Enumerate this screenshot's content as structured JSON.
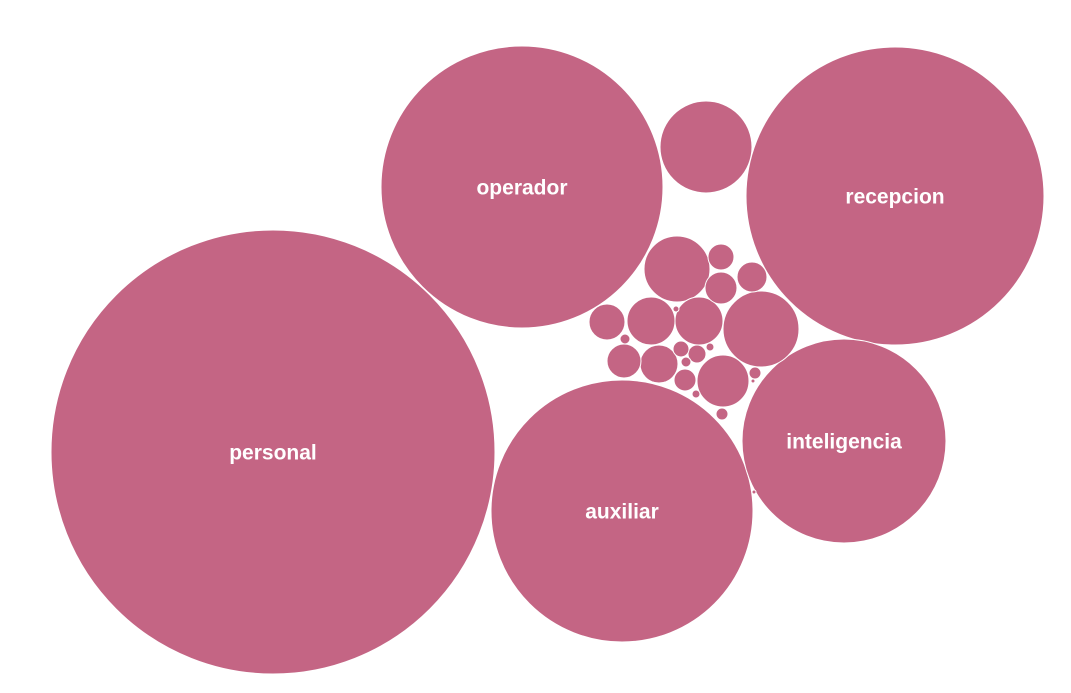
{
  "colors": {
    "bubble_fill": "#c46584",
    "label_text": "#ffffff",
    "background": "#ffffff"
  },
  "chart_data": {
    "type": "bubble",
    "labels_shown_for_large_bubbles": true,
    "bubbles": [
      {
        "label": "personal"
      },
      {
        "label": "operador"
      },
      {
        "label": "recepcion"
      },
      {
        "label": "auxiliar"
      },
      {
        "label": "inteligencia"
      },
      {
        "label": ""
      },
      {
        "label": ""
      },
      {
        "label": ""
      },
      {
        "label": ""
      },
      {
        "label": ""
      },
      {
        "label": ""
      },
      {
        "label": ""
      },
      {
        "label": ""
      },
      {
        "label": ""
      },
      {
        "label": ""
      },
      {
        "label": ""
      },
      {
        "label": ""
      },
      {
        "label": ""
      },
      {
        "label": ""
      },
      {
        "label": ""
      },
      {
        "label": ""
      },
      {
        "label": ""
      },
      {
        "label": ""
      },
      {
        "label": ""
      },
      {
        "label": ""
      },
      {
        "label": ""
      },
      {
        "label": ""
      },
      {
        "label": ""
      },
      {
        "label": ""
      }
    ]
  }
}
